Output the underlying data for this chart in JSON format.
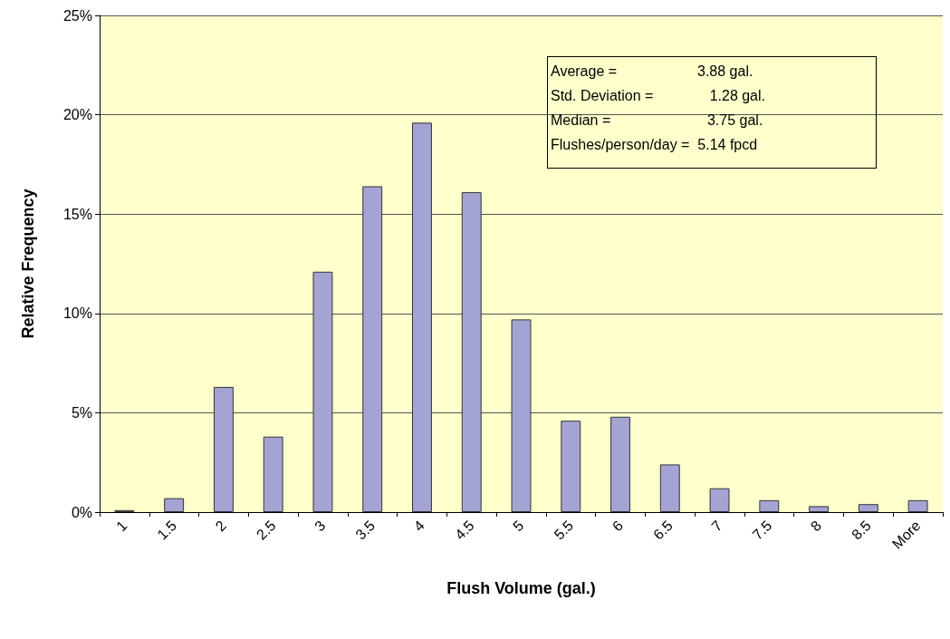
{
  "chart_data": {
    "type": "bar",
    "xlabel": "Flush Volume (gal.)",
    "ylabel": "Relative Frequency",
    "categories": [
      "1",
      "1.5",
      "2",
      "2.5",
      "3",
      "3.5",
      "4",
      "4.5",
      "5",
      "5.5",
      "6",
      "6.5",
      "7",
      "7.5",
      "8",
      "8.5",
      "More"
    ],
    "values": [
      0.1,
      0.7,
      6.3,
      3.8,
      12.1,
      16.4,
      19.6,
      16.1,
      9.7,
      4.6,
      4.8,
      2.4,
      1.2,
      0.6,
      0.3,
      0.4,
      0.6
    ],
    "color": "#a4a4d4",
    "ylim": [
      0,
      25
    ],
    "yticks": [
      {
        "value": 0,
        "label": "0%"
      },
      {
        "value": 5,
        "label": "5%"
      },
      {
        "value": 10,
        "label": "10%"
      },
      {
        "value": 15,
        "label": "15%"
      },
      {
        "value": 20,
        "label": "20%"
      },
      {
        "value": 25,
        "label": "25%"
      }
    ],
    "grid": "y",
    "annotations": [
      "Average =                    3.88 gal.",
      "Std. Deviation =              1.28 gal.",
      "Median =                        3.75 gal.",
      "Flushes/person/day =  5.14 fpcd"
    ]
  }
}
